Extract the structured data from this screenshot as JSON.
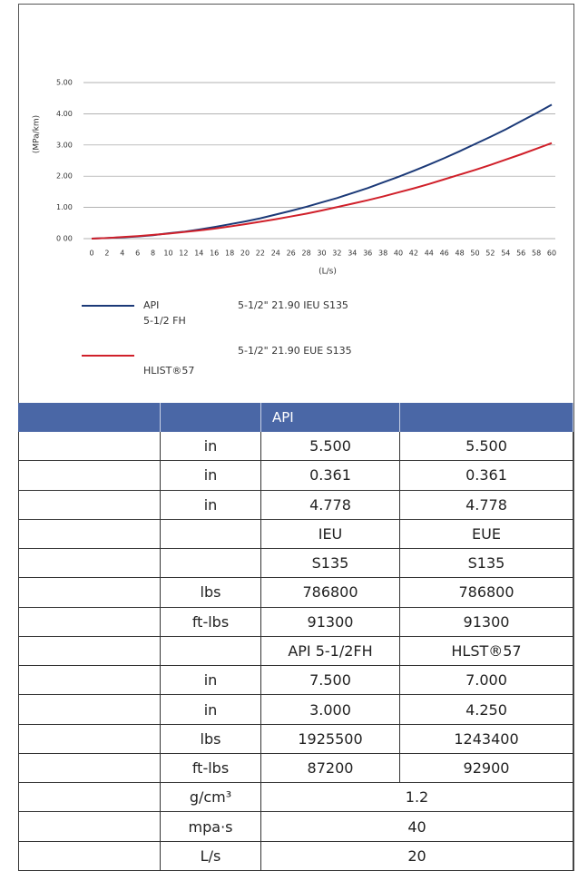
{
  "chart_data": {
    "type": "line",
    "y_label": "(MPa/km)",
    "x_label": "(L/s)",
    "x": [
      0,
      2,
      4,
      6,
      8,
      10,
      12,
      14,
      16,
      18,
      20,
      22,
      24,
      26,
      28,
      30,
      32,
      34,
      36,
      38,
      40,
      42,
      44,
      46,
      48,
      50,
      52,
      54,
      56,
      58,
      60
    ],
    "xlim": [
      0,
      60
    ],
    "xticks": [
      0,
      2,
      4,
      6,
      8,
      10,
      12,
      14,
      16,
      18,
      20,
      22,
      24,
      26,
      28,
      30,
      32,
      34,
      36,
      38,
      40,
      42,
      44,
      46,
      48,
      50,
      52,
      54,
      56,
      58,
      60
    ],
    "ylim": [
      0,
      5
    ],
    "yticks": [
      {
        "value": 0,
        "label": "0 00"
      },
      {
        "value": 1,
        "label": "1.00"
      },
      {
        "value": 2,
        "label": "2.00"
      },
      {
        "value": 3,
        "label": "3.00"
      },
      {
        "value": 4,
        "label": "4.00"
      },
      {
        "value": 5,
        "label": "5.00"
      }
    ],
    "grid": true,
    "series": [
      {
        "name": "5-1/2\" 21.90 IEU S135",
        "legend_extra": [
          "API",
          "5-1/2 FH"
        ],
        "color": "#1c3a78",
        "values": [
          0,
          0.02,
          0.04,
          0.07,
          0.11,
          0.17,
          0.22,
          0.29,
          0.37,
          0.46,
          0.55,
          0.65,
          0.77,
          0.89,
          1.02,
          1.16,
          1.3,
          1.46,
          1.62,
          1.8,
          1.98,
          2.17,
          2.37,
          2.58,
          2.8,
          3.03,
          3.26,
          3.5,
          3.76,
          4.02,
          4.29
        ]
      },
      {
        "name": "5-1/2\" 21.90 EUE S135",
        "legend_extra": [
          "HLIST®57"
        ],
        "color": "#d0202a",
        "values": [
          0,
          0.02,
          0.05,
          0.08,
          0.12,
          0.16,
          0.21,
          0.26,
          0.32,
          0.39,
          0.46,
          0.54,
          0.62,
          0.71,
          0.8,
          0.9,
          1.01,
          1.12,
          1.23,
          1.35,
          1.48,
          1.61,
          1.75,
          1.9,
          2.05,
          2.2,
          2.36,
          2.53,
          2.7,
          2.88,
          3.06
        ]
      }
    ]
  },
  "table": {
    "header": "API",
    "rows": [
      {
        "unit": "in",
        "values": [
          "5.500",
          "5.500"
        ]
      },
      {
        "unit": "in",
        "values": [
          "0.361",
          "0.361"
        ]
      },
      {
        "unit": "in",
        "values": [
          "4.778",
          "4.778"
        ]
      },
      {
        "values": [
          "IEU",
          "EUE"
        ]
      },
      {
        "values": [
          "S135",
          "S135"
        ]
      },
      {
        "unit": "lbs",
        "values": [
          "786800",
          "786800"
        ]
      },
      {
        "unit": "ft-lbs",
        "values": [
          "91300",
          "91300"
        ]
      },
      {
        "values": [
          "API 5-1/2FH",
          "HLST®57"
        ]
      },
      {
        "unit": "in",
        "values": [
          "7.500",
          "7.000"
        ]
      },
      {
        "unit": "in",
        "values": [
          "3.000",
          "4.250"
        ]
      },
      {
        "unit": "lbs",
        "values": [
          "1925500",
          "1243400"
        ]
      },
      {
        "unit": "ft-lbs",
        "values": [
          "87200",
          "92900"
        ]
      },
      {
        "unit": "g/cm³",
        "value": "1.2"
      },
      {
        "unit": "mpa·s",
        "value": "40"
      },
      {
        "unit": "L/s",
        "value": "20"
      }
    ]
  }
}
